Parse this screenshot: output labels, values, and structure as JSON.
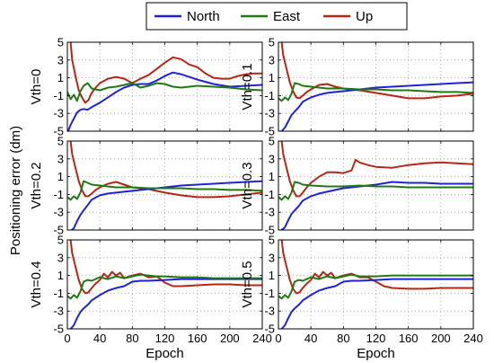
{
  "figure": {
    "ylabel": "Positioning error (dm)",
    "xlabel": "Epoch"
  },
  "legend": [
    {
      "name": "North",
      "color": "#1f22d6"
    },
    {
      "name": "East",
      "color": "#1f7a12"
    },
    {
      "name": "Up",
      "color": "#b52712"
    }
  ],
  "chart_data": {
    "type": "line",
    "xlim": [
      0,
      240
    ],
    "ylim": [
      -5,
      5
    ],
    "x_ticks": [
      "0",
      "40",
      "80",
      "120",
      "160",
      "200",
      "240"
    ],
    "y_ticks": [
      "-5",
      "-3",
      "-1",
      "1",
      "3",
      "5"
    ],
    "xlabel": "Epoch",
    "ylabel": "Positioning error (dm)",
    "grid": true,
    "legend_position": "top-center",
    "panels": [
      {
        "label": "Vth=0",
        "series": [
          {
            "name": "North",
            "x": [
              0,
              4,
              8,
              12,
              16,
              20,
              25,
              30,
              40,
              50,
              60,
              70,
              80,
              90,
              100,
              110,
              120,
              130,
              140,
              150,
              160,
              180,
              200,
              220,
              240
            ],
            "y": [
              -5.2,
              -4.3,
              -3.6,
              -2.9,
              -2.6,
              -2.5,
              -2.6,
              -2.3,
              -1.8,
              -1.2,
              -0.6,
              -0.1,
              0.2,
              0.3,
              0.3,
              0.7,
              1.2,
              1.6,
              1.4,
              1.1,
              0.8,
              0.3,
              0.0,
              0.1,
              0.2
            ]
          },
          {
            "name": "East",
            "x": [
              0,
              4,
              8,
              12,
              16,
              20,
              25,
              30,
              40,
              50,
              60,
              70,
              80,
              90,
              100,
              110,
              120,
              130,
              140,
              160,
              180,
              200,
              220,
              240
            ],
            "y": [
              -0.6,
              -1.4,
              -0.9,
              -1.6,
              -0.5,
              0.1,
              0.4,
              -0.2,
              -0.4,
              -0.1,
              0.0,
              0.2,
              0.4,
              -0.1,
              0.1,
              0.4,
              0.3,
              0.0,
              -0.1,
              0.1,
              0.0,
              -0.1,
              -0.3,
              -0.4
            ]
          },
          {
            "name": "Up",
            "x": [
              4,
              6,
              10,
              14,
              18,
              22,
              26,
              30,
              35,
              40,
              50,
              60,
              70,
              80,
              90,
              100,
              110,
              120,
              130,
              140,
              150,
              160,
              170,
              180,
              190,
              200,
              210,
              220,
              230,
              240
            ],
            "y": [
              5.0,
              3.0,
              1.2,
              -0.4,
              -1.2,
              -1.8,
              -1.5,
              -0.7,
              -0.1,
              0.4,
              0.9,
              1.1,
              0.9,
              0.4,
              0.9,
              1.3,
              2.0,
              2.7,
              3.3,
              3.1,
              2.5,
              2.2,
              1.5,
              1.0,
              0.9,
              0.9,
              1.2,
              1.4,
              1.5,
              1.5
            ]
          }
        ]
      },
      {
        "label": "Vth=0.1",
        "series": [
          {
            "name": "North",
            "x": [
              0,
              4,
              8,
              12,
              16,
              20,
              25,
              30,
              40,
              50,
              60,
              70,
              80,
              100,
              120,
              140,
              160,
              180,
              200,
              220,
              240
            ],
            "y": [
              -5.2,
              -5.0,
              -4.6,
              -3.9,
              -3.2,
              -2.8,
              -2.3,
              -1.7,
              -1.2,
              -0.9,
              -0.7,
              -0.6,
              -0.5,
              -0.3,
              -0.1,
              0.0,
              0.1,
              0.2,
              0.3,
              0.4,
              0.5
            ]
          },
          {
            "name": "East",
            "x": [
              0,
              4,
              8,
              12,
              16,
              20,
              25,
              30,
              40,
              60,
              80,
              100,
              120,
              140,
              160,
              180,
              200,
              220,
              240
            ],
            "y": [
              -1.3,
              -1.6,
              -1.2,
              -1.5,
              -0.8,
              0.4,
              0.3,
              0.1,
              0.0,
              -0.2,
              -0.2,
              -0.3,
              -0.3,
              -0.4,
              -0.4,
              -0.5,
              -0.6,
              -0.6,
              -0.7
            ]
          },
          {
            "name": "Up",
            "x": [
              4,
              6,
              10,
              14,
              18,
              22,
              26,
              30,
              35,
              40,
              50,
              60,
              70,
              80,
              100,
              120,
              140,
              160,
              180,
              200,
              220,
              240
            ],
            "y": [
              5.0,
              3.5,
              2.0,
              0.5,
              -0.5,
              -1.2,
              -1.3,
              -1.0,
              -0.6,
              -0.3,
              0.2,
              0.3,
              0.0,
              -0.2,
              -0.4,
              -0.7,
              -1.0,
              -1.3,
              -1.3,
              -1.1,
              -1.0,
              -0.8
            ]
          }
        ]
      },
      {
        "label": "Vth=0.2",
        "series": [
          {
            "name": "North",
            "x": [
              0,
              4,
              8,
              12,
              16,
              20,
              25,
              30,
              40,
              50,
              60,
              70,
              80,
              100,
              120,
              140,
              160,
              180,
              200,
              220,
              240
            ],
            "y": [
              -5.2,
              -5.1,
              -4.8,
              -4.0,
              -3.3,
              -2.8,
              -2.2,
              -1.6,
              -1.1,
              -0.9,
              -0.8,
              -0.7,
              -0.6,
              -0.4,
              -0.2,
              0.0,
              0.1,
              0.2,
              0.3,
              0.4,
              0.5
            ]
          },
          {
            "name": "East",
            "x": [
              0,
              4,
              8,
              12,
              16,
              20,
              25,
              30,
              40,
              60,
              80,
              100,
              120,
              140,
              160,
              180,
              200,
              220,
              240
            ],
            "y": [
              -1.3,
              -1.6,
              -1.2,
              -1.5,
              -0.8,
              0.5,
              0.3,
              0.1,
              0.0,
              -0.2,
              -0.2,
              -0.3,
              -0.3,
              -0.3,
              -0.4,
              -0.4,
              -0.5,
              -0.5,
              -0.6
            ]
          },
          {
            "name": "Up",
            "x": [
              4,
              6,
              10,
              14,
              18,
              22,
              26,
              30,
              35,
              40,
              50,
              60,
              70,
              80,
              100,
              120,
              140,
              160,
              180,
              200,
              220,
              240
            ],
            "y": [
              5.0,
              3.5,
              2.0,
              0.5,
              -0.5,
              -1.2,
              -1.2,
              -0.9,
              -0.5,
              -0.2,
              0.2,
              0.4,
              0.1,
              -0.2,
              -0.4,
              -0.8,
              -1.1,
              -1.3,
              -1.3,
              -1.2,
              -1.0,
              -0.8
            ]
          }
        ]
      },
      {
        "label": "Vth=0.3",
        "series": [
          {
            "name": "North",
            "x": [
              0,
              4,
              8,
              12,
              16,
              20,
              25,
              30,
              40,
              50,
              60,
              70,
              80,
              100,
              120,
              140,
              160,
              180,
              200,
              220,
              240
            ],
            "y": [
              -5.2,
              -5.0,
              -4.7,
              -3.9,
              -3.2,
              -2.8,
              -2.3,
              -1.7,
              -1.2,
              -0.9,
              -0.7,
              -0.5,
              -0.3,
              -0.1,
              0.1,
              0.4,
              0.3,
              0.3,
              0.2,
              0.2,
              0.2
            ]
          },
          {
            "name": "East",
            "x": [
              0,
              4,
              8,
              12,
              16,
              20,
              25,
              30,
              40,
              60,
              80,
              100,
              120,
              140,
              160,
              180,
              200,
              220,
              240
            ],
            "y": [
              -1.3,
              -1.6,
              -1.2,
              -1.5,
              -0.8,
              0.4,
              0.3,
              0.1,
              0.0,
              -0.1,
              -0.1,
              0.0,
              -0.1,
              -0.1,
              -0.2,
              -0.2,
              -0.2,
              -0.2,
              -0.2
            ]
          },
          {
            "name": "Up",
            "x": [
              4,
              6,
              10,
              14,
              18,
              22,
              26,
              30,
              35,
              40,
              50,
              60,
              70,
              80,
              90,
              95,
              100,
              110,
              120,
              140,
              160,
              180,
              200,
              220,
              240
            ],
            "y": [
              5.0,
              3.5,
              2.0,
              0.5,
              -0.5,
              -1.2,
              -1.2,
              -0.8,
              -0.2,
              0.3,
              1.0,
              1.5,
              1.5,
              1.4,
              1.7,
              2.9,
              2.6,
              2.3,
              2.1,
              2.0,
              2.3,
              2.5,
              2.6,
              2.5,
              2.4
            ]
          }
        ]
      },
      {
        "label": "Vth=0.4",
        "series": [
          {
            "name": "North",
            "x": [
              0,
              4,
              8,
              12,
              16,
              20,
              25,
              30,
              40,
              50,
              60,
              70,
              80,
              90,
              100,
              120,
              140,
              160,
              180,
              200,
              220,
              240
            ],
            "y": [
              -5.2,
              -5.0,
              -4.6,
              -3.8,
              -3.1,
              -2.7,
              -2.3,
              -1.8,
              -1.2,
              -0.7,
              -0.4,
              -0.2,
              0.3,
              0.4,
              0.4,
              0.5,
              0.6,
              0.6,
              0.6,
              0.6,
              0.6,
              0.6
            ]
          },
          {
            "name": "East",
            "x": [
              0,
              4,
              8,
              12,
              16,
              20,
              25,
              30,
              40,
              50,
              60,
              70,
              80,
              90,
              100,
              110,
              120,
              140,
              160,
              180,
              200,
              220,
              240
            ],
            "y": [
              -1.3,
              -1.6,
              -1.2,
              -1.5,
              -0.8,
              0.3,
              0.5,
              0.4,
              0.8,
              0.6,
              0.9,
              0.7,
              0.9,
              1.1,
              1.0,
              0.9,
              0.9,
              0.8,
              0.8,
              0.7,
              0.7,
              0.7,
              0.7
            ]
          },
          {
            "name": "Up",
            "x": [
              4,
              6,
              10,
              14,
              18,
              22,
              26,
              30,
              35,
              40,
              45,
              50,
              55,
              60,
              65,
              70,
              80,
              90,
              100,
              110,
              120,
              130,
              140,
              160,
              180,
              200,
              220,
              240
            ],
            "y": [
              5.0,
              3.5,
              2.0,
              0.5,
              -0.5,
              -1.0,
              -0.9,
              -0.4,
              0.1,
              0.5,
              1.2,
              0.8,
              1.4,
              1.0,
              1.3,
              0.7,
              1.0,
              1.2,
              0.8,
              0.9,
              0.2,
              -0.2,
              -0.2,
              -0.1,
              0.0,
              0.0,
              -0.1,
              -0.1
            ]
          }
        ]
      },
      {
        "label": "Vth=0.5",
        "series": [
          {
            "name": "North",
            "x": [
              0,
              4,
              8,
              12,
              16,
              20,
              25,
              30,
              40,
              50,
              60,
              70,
              80,
              90,
              100,
              120,
              140,
              160,
              180,
              200,
              220,
              240
            ],
            "y": [
              -5.2,
              -5.0,
              -4.6,
              -3.8,
              -3.1,
              -2.7,
              -2.3,
              -1.8,
              -1.2,
              -0.7,
              -0.4,
              -0.2,
              0.3,
              0.4,
              0.4,
              0.5,
              0.6,
              0.6,
              0.6,
              0.6,
              0.6,
              0.6
            ]
          },
          {
            "name": "East",
            "x": [
              0,
              4,
              8,
              12,
              16,
              20,
              25,
              30,
              40,
              50,
              60,
              70,
              80,
              90,
              100,
              110,
              120,
              140,
              160,
              180,
              200,
              220,
              240
            ],
            "y": [
              -1.3,
              -1.6,
              -1.2,
              -1.5,
              -0.8,
              0.3,
              0.5,
              0.4,
              0.8,
              0.6,
              0.9,
              0.7,
              0.9,
              1.1,
              0.9,
              0.9,
              0.9,
              1.0,
              1.0,
              1.0,
              1.0,
              1.0,
              1.0
            ]
          },
          {
            "name": "Up",
            "x": [
              4,
              6,
              10,
              14,
              18,
              22,
              26,
              30,
              35,
              40,
              45,
              50,
              55,
              60,
              65,
              70,
              80,
              90,
              100,
              110,
              120,
              130,
              140,
              160,
              180,
              200,
              220,
              240
            ],
            "y": [
              5.0,
              3.5,
              2.0,
              0.5,
              -0.5,
              -1.0,
              -0.9,
              -0.4,
              0.1,
              0.5,
              1.2,
              0.8,
              1.4,
              1.0,
              1.3,
              0.7,
              1.0,
              1.2,
              0.8,
              0.8,
              0.3,
              -0.2,
              -0.4,
              -0.5,
              -0.5,
              -0.4,
              -0.4,
              -0.4
            ]
          }
        ]
      }
    ]
  }
}
